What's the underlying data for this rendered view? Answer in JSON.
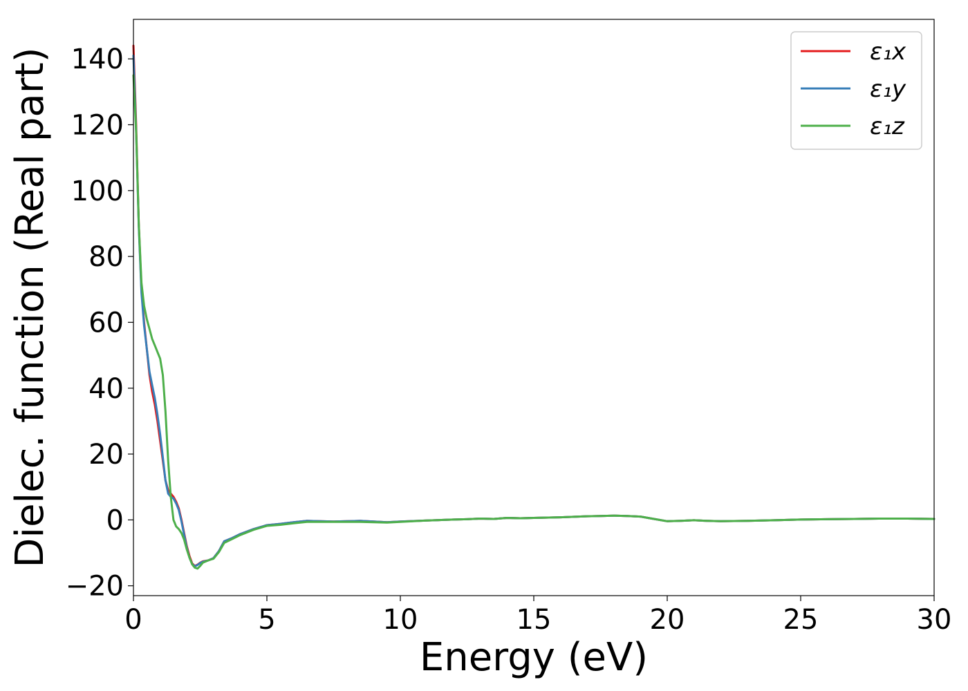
{
  "chart_data": {
    "type": "line",
    "title": "",
    "xlabel": "Energy (eV)",
    "ylabel": "Dielec. function (Real part)",
    "xlim": [
      0,
      30
    ],
    "ylim": [
      -23,
      152
    ],
    "xticks": [
      0,
      5,
      10,
      15,
      20,
      25,
      30
    ],
    "yticks": [
      -20,
      0,
      20,
      40,
      60,
      80,
      100,
      120,
      140
    ],
    "ytick_labels": [
      "−20",
      "0",
      "20",
      "40",
      "60",
      "80",
      "100",
      "120",
      "140"
    ],
    "grid": false,
    "legend_position": "top-right",
    "series": [
      {
        "name": "ε₁x",
        "color": "#e41a1c",
        "x": [
          0.0,
          0.1,
          0.2,
          0.3,
          0.4,
          0.5,
          0.6,
          0.7,
          0.8,
          0.9,
          1.0,
          1.1,
          1.2,
          1.3,
          1.4,
          1.5,
          1.6,
          1.7,
          1.8,
          1.9,
          2.0,
          2.1,
          2.2,
          2.3,
          2.4,
          2.5,
          2.6,
          2.8,
          3.0,
          3.2,
          3.4,
          3.7,
          4.0,
          4.5,
          5.0,
          5.5,
          6.0,
          6.5,
          7.0,
          7.5,
          8.0,
          8.5,
          9.0,
          9.5,
          10.0,
          11.0,
          12.0,
          12.5,
          13.0,
          13.5,
          14.0,
          14.5,
          15.0,
          16.0,
          17.0,
          17.5,
          18.0,
          18.5,
          19.0,
          19.5,
          20.0,
          20.5,
          21.0,
          21.5,
          22.0,
          23.0,
          24.0,
          25.0,
          26.0,
          27.0,
          28.0,
          29.0,
          30.0
        ],
        "values": [
          144,
          120,
          90,
          70,
          60,
          52,
          44,
          39,
          35,
          30,
          24,
          18,
          12,
          9,
          8,
          7,
          5.5,
          3.5,
          0,
          -4,
          -8,
          -11,
          -13.2,
          -14,
          -13.6,
          -13,
          -12.6,
          -12.3,
          -11.6,
          -9.5,
          -6.5,
          -5.5,
          -4.3,
          -2.8,
          -1.6,
          -1.2,
          -0.7,
          -0.3,
          -0.4,
          -0.5,
          -0.4,
          -0.3,
          -0.5,
          -0.7,
          -0.5,
          -0.2,
          0.1,
          0.2,
          0.4,
          0.3,
          0.6,
          0.5,
          0.6,
          0.8,
          1.1,
          1.2,
          1.3,
          1.2,
          1.0,
          0.3,
          -0.4,
          -0.3,
          -0.1,
          -0.3,
          -0.4,
          -0.3,
          -0.1,
          0.1,
          0.2,
          0.3,
          0.4,
          0.4,
          0.3
        ]
      },
      {
        "name": "ε₁y",
        "color": "#377eb8",
        "x": [
          0.0,
          0.1,
          0.2,
          0.3,
          0.4,
          0.5,
          0.6,
          0.7,
          0.8,
          0.9,
          1.0,
          1.1,
          1.2,
          1.3,
          1.4,
          1.5,
          1.6,
          1.7,
          1.8,
          1.9,
          2.0,
          2.1,
          2.2,
          2.3,
          2.4,
          2.5,
          2.6,
          2.8,
          3.0,
          3.2,
          3.4,
          3.7,
          4.0,
          4.5,
          5.0,
          5.5,
          6.0,
          6.5,
          7.0,
          7.5,
          8.0,
          8.5,
          9.0,
          9.5,
          10.0,
          11.0,
          12.0,
          12.5,
          13.0,
          13.5,
          14.0,
          14.5,
          15.0,
          16.0,
          17.0,
          17.5,
          18.0,
          18.5,
          19.0,
          19.5,
          20.0,
          20.5,
          21.0,
          21.5,
          22.0,
          23.0,
          24.0,
          25.0,
          26.0,
          27.0,
          28.0,
          29.0,
          30.0
        ],
        "values": [
          141,
          118,
          89,
          69,
          59,
          52,
          45,
          41,
          37,
          32,
          26,
          19,
          12,
          8,
          7,
          6.5,
          5,
          3,
          -0.5,
          -4.5,
          -8.5,
          -11.5,
          -13.4,
          -14.1,
          -13.7,
          -13.1,
          -12.7,
          -12.3,
          -11.6,
          -9.5,
          -6.5,
          -5.5,
          -4.3,
          -2.8,
          -1.6,
          -1.2,
          -0.7,
          -0.3,
          -0.4,
          -0.5,
          -0.4,
          -0.3,
          -0.5,
          -0.7,
          -0.5,
          -0.2,
          0.1,
          0.2,
          0.4,
          0.3,
          0.6,
          0.5,
          0.6,
          0.8,
          1.1,
          1.2,
          1.3,
          1.2,
          1.0,
          0.3,
          -0.4,
          -0.3,
          -0.1,
          -0.3,
          -0.4,
          -0.3,
          -0.1,
          0.1,
          0.2,
          0.3,
          0.4,
          0.4,
          0.3
        ]
      },
      {
        "name": "ε₁z",
        "color": "#4daf4a",
        "x": [
          0.0,
          0.1,
          0.2,
          0.3,
          0.4,
          0.5,
          0.6,
          0.7,
          0.8,
          0.9,
          1.0,
          1.1,
          1.2,
          1.3,
          1.4,
          1.5,
          1.6,
          1.7,
          1.8,
          1.9,
          2.0,
          2.1,
          2.2,
          2.3,
          2.4,
          2.5,
          2.6,
          2.8,
          3.0,
          3.2,
          3.4,
          3.7,
          4.0,
          4.5,
          5.0,
          5.5,
          6.0,
          6.5,
          7.0,
          7.5,
          8.0,
          8.5,
          9.0,
          9.5,
          10.0,
          11.0,
          12.0,
          12.5,
          13.0,
          13.5,
          14.0,
          14.5,
          15.0,
          16.0,
          17.0,
          17.5,
          18.0,
          18.5,
          19.0,
          19.5,
          20.0,
          20.5,
          21.0,
          21.5,
          22.0,
          23.0,
          24.0,
          25.0,
          26.0,
          27.0,
          28.0,
          29.0,
          30.0
        ],
        "values": [
          135,
          118,
          90,
          72,
          65,
          61,
          58,
          55,
          53,
          51,
          49,
          44,
          33,
          18,
          7,
          0,
          -2,
          -2.8,
          -4,
          -6,
          -9,
          -11.5,
          -13.5,
          -14.5,
          -14.8,
          -14,
          -13,
          -12.3,
          -11.8,
          -9.8,
          -7,
          -5.8,
          -4.6,
          -3.0,
          -1.8,
          -1.5,
          -1.0,
          -0.6,
          -0.6,
          -0.6,
          -0.6,
          -0.6,
          -0.7,
          -0.8,
          -0.6,
          -0.2,
          0.1,
          0.2,
          0.4,
          0.3,
          0.6,
          0.5,
          0.6,
          0.8,
          1.1,
          1.2,
          1.3,
          1.2,
          1.0,
          0.3,
          -0.4,
          -0.3,
          -0.1,
          -0.3,
          -0.4,
          -0.3,
          -0.1,
          0.1,
          0.2,
          0.3,
          0.4,
          0.4,
          0.3
        ]
      }
    ]
  }
}
